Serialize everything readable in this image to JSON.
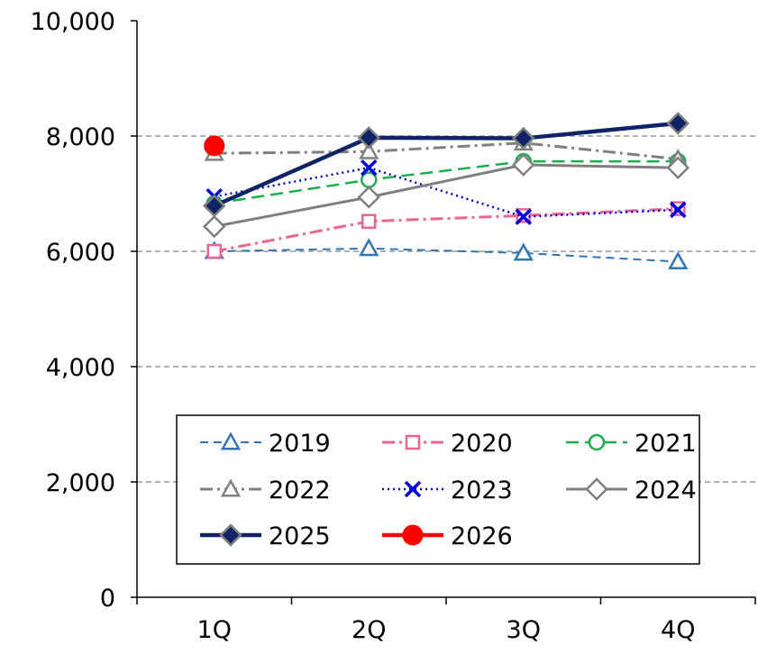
{
  "chart_data": {
    "type": "line",
    "title": "",
    "xlabel": "",
    "ylabel": "",
    "categories": [
      "1Q",
      "2Q",
      "3Q",
      "4Q"
    ],
    "ylim": [
      0,
      10000
    ],
    "yticks": [
      0,
      2000,
      4000,
      6000,
      8000,
      10000
    ],
    "ytick_labels": [
      "0",
      "2,000",
      "4,000",
      "6,000",
      "8,000",
      "10,000"
    ],
    "grid": "horizontal dashed gray",
    "legend_position": "bottom (inside plot, 3 columns)",
    "series": [
      {
        "name": "2019",
        "values": [
          6000,
          6050,
          5970,
          5820
        ],
        "color": "#2E75B6",
        "marker": "triangle-open",
        "line": "dashed"
      },
      {
        "name": "2020",
        "values": [
          6000,
          6520,
          6620,
          6740
        ],
        "color": "#F06292",
        "marker": "square-open",
        "line": "dashdot"
      },
      {
        "name": "2021",
        "values": [
          6830,
          7240,
          7560,
          7560
        ],
        "color": "#1AAE4C",
        "marker": "circle-open",
        "line": "longdash"
      },
      {
        "name": "2022",
        "values": [
          7700,
          7730,
          7880,
          7600
        ],
        "color": "#808080",
        "marker": "triangle-open",
        "line": "dashdot"
      },
      {
        "name": "2023",
        "values": [
          6950,
          7450,
          6600,
          6720
        ],
        "color": "#0000E6",
        "marker": "x",
        "line": "dotted"
      },
      {
        "name": "2024",
        "values": [
          6430,
          6940,
          7500,
          7450
        ],
        "color": "#7F7F7F",
        "marker": "diamond-open",
        "line": "solid"
      },
      {
        "name": "2025",
        "values": [
          6790,
          7970,
          7960,
          8220
        ],
        "color": "#0E2466",
        "marker": "diamond-filled",
        "line": "solid-thick"
      },
      {
        "name": "2026",
        "values": [
          7830,
          null,
          null,
          null
        ],
        "color": "#FF0000",
        "marker": "circle-filled",
        "line": "solid-thick"
      }
    ]
  }
}
